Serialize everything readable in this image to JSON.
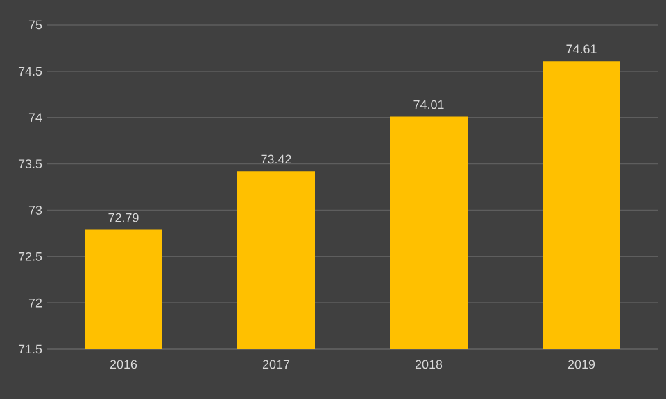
{
  "chart_data": {
    "type": "bar",
    "categories": [
      "2016",
      "2017",
      "2018",
      "2019"
    ],
    "values": [
      72.79,
      73.42,
      74.01,
      74.61
    ],
    "color": "#ffc000",
    "ylim": [
      71.5,
      75
    ],
    "yticks": [
      71.5,
      72,
      72.5,
      73,
      73.5,
      74,
      74.5,
      75
    ],
    "grid": "y",
    "data_labels": true
  }
}
